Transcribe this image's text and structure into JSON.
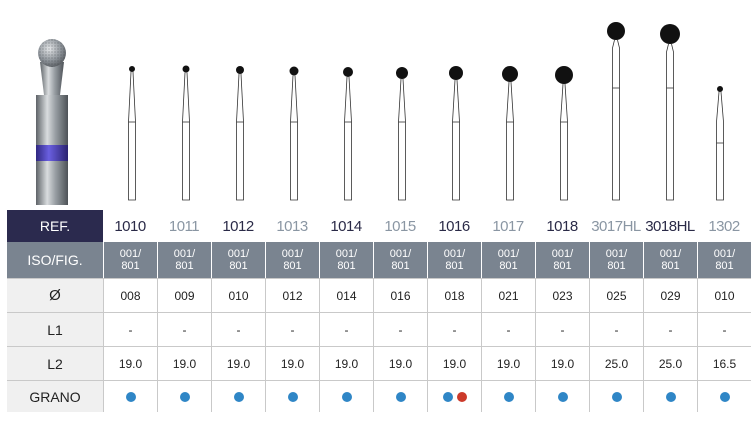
{
  "header": {
    "ref_label": "REF."
  },
  "columns": [
    {
      "ref": "1010",
      "tone": "dark",
      "iso": [
        "001/",
        "801"
      ],
      "diameter": "008",
      "l1": "-",
      "l2": "19.0",
      "grano": [
        "blue"
      ]
    },
    {
      "ref": "1011",
      "tone": "light",
      "iso": [
        "001/",
        "801"
      ],
      "diameter": "009",
      "l1": "-",
      "l2": "19.0",
      "grano": [
        "blue"
      ]
    },
    {
      "ref": "1012",
      "tone": "dark",
      "iso": [
        "001/",
        "801"
      ],
      "diameter": "010",
      "l1": "-",
      "l2": "19.0",
      "grano": [
        "blue"
      ]
    },
    {
      "ref": "1013",
      "tone": "light",
      "iso": [
        "001/",
        "801"
      ],
      "diameter": "012",
      "l1": "-",
      "l2": "19.0",
      "grano": [
        "blue"
      ]
    },
    {
      "ref": "1014",
      "tone": "dark",
      "iso": [
        "001/",
        "801"
      ],
      "diameter": "014",
      "l1": "-",
      "l2": "19.0",
      "grano": [
        "blue"
      ]
    },
    {
      "ref": "1015",
      "tone": "light",
      "iso": [
        "001/",
        "801"
      ],
      "diameter": "016",
      "l1": "-",
      "l2": "19.0",
      "grano": [
        "blue"
      ]
    },
    {
      "ref": "1016",
      "tone": "dark",
      "iso": [
        "001/",
        "801"
      ],
      "diameter": "018",
      "l1": "-",
      "l2": "19.0",
      "grano": [
        "blue",
        "red"
      ]
    },
    {
      "ref": "1017",
      "tone": "light",
      "iso": [
        "001/",
        "801"
      ],
      "diameter": "021",
      "l1": "-",
      "l2": "19.0",
      "grano": [
        "blue"
      ]
    },
    {
      "ref": "1018",
      "tone": "dark",
      "iso": [
        "001/",
        "801"
      ],
      "diameter": "023",
      "l1": "-",
      "l2": "19.0",
      "grano": [
        "blue"
      ]
    },
    {
      "ref": "3017HL",
      "tone": "light",
      "iso": [
        "001/",
        "801"
      ],
      "diameter": "025",
      "l1": "-",
      "l2": "25.0",
      "grano": [
        "blue"
      ]
    },
    {
      "ref": "3018HL",
      "tone": "dark",
      "iso": [
        "001/",
        "801"
      ],
      "diameter": "029",
      "l1": "-",
      "l2": "25.0",
      "grano": [
        "blue"
      ]
    },
    {
      "ref": "1302",
      "tone": "light",
      "iso": [
        "001/",
        "801"
      ],
      "diameter": "010",
      "l1": "-",
      "l2": "16.5",
      "grano": [
        "blue"
      ]
    }
  ],
  "rows": {
    "iso_label": "ISO/FIG.",
    "diameter_label": "Ø",
    "l1_label": "L1",
    "l2_label": "L2",
    "grano_label": "GRANO"
  },
  "colors": {
    "ref_header_bg": "#2b2a4e",
    "iso_bg": "#7a8490",
    "ref_dark": "#2a2a47",
    "ref_light": "#8a96a3",
    "grano_blue": "#2f86c6",
    "grano_red": "#cc3a2a",
    "band_violet": "#4b3fb0"
  }
}
